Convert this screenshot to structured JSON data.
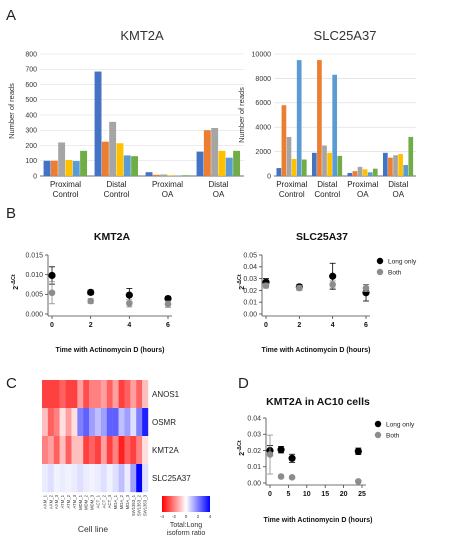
{
  "panels": {
    "A": {
      "label": "A"
    },
    "B": {
      "label": "B"
    },
    "C": {
      "label": "C"
    },
    "D": {
      "label": "D"
    }
  },
  "series_colors": [
    "#4472c4",
    "#ed7d31",
    "#a5a5a5",
    "#ffc000",
    "#5b9bd5",
    "#70ad47"
  ],
  "chart_data": [
    {
      "type": "bar",
      "panel": "A",
      "title": "KMT2A",
      "ylabel": "Number of reads",
      "ylim": [
        0,
        800
      ],
      "yticks": [
        0,
        100,
        200,
        300,
        400,
        500,
        600,
        700,
        800
      ],
      "grid": true,
      "categories": [
        "Proximal Control",
        "Distal Control",
        "Proximal OA",
        "Distal OA"
      ],
      "category_lines": [
        [
          "Proximal",
          "Control"
        ],
        [
          "Distal",
          "Control"
        ],
        [
          "Proximal",
          "OA"
        ],
        [
          "Distal",
          "OA"
        ]
      ],
      "groups": [
        [
          100,
          100,
          220,
          105,
          98,
          165
        ],
        [
          685,
          225,
          355,
          215,
          135,
          130
        ],
        [
          25,
          8,
          10,
          5,
          3,
          5
        ],
        [
          160,
          300,
          315,
          165,
          120,
          165
        ]
      ]
    },
    {
      "type": "bar",
      "panel": "A",
      "title": "SLC25A37",
      "ylabel": "Number of reads",
      "ylim": [
        0,
        10000
      ],
      "yticks": [
        0,
        2000,
        4000,
        6000,
        8000,
        10000
      ],
      "grid": true,
      "categories": [
        "Proximal Control",
        "Distal Control",
        "Proximal OA",
        "Distal OA"
      ],
      "category_lines": [
        [
          "Proximal",
          "Control"
        ],
        [
          "Distal",
          "Control"
        ],
        [
          "Proximal",
          "OA"
        ],
        [
          "Distal",
          "OA"
        ]
      ],
      "groups": [
        [
          650,
          5800,
          3200,
          1400,
          9500,
          1350
        ],
        [
          1900,
          9500,
          2500,
          1900,
          8300,
          1650
        ],
        [
          250,
          400,
          750,
          550,
          300,
          600
        ],
        [
          1900,
          1500,
          1700,
          1800,
          900,
          3200
        ]
      ]
    },
    {
      "type": "scatter",
      "panel": "B",
      "title": "KMT2A",
      "xlabel": "Time with Actinomycin D (hours)",
      "ylabel": "2^-ΔCt",
      "ylabel_base": "2",
      "ylabel_sup": "-ΔCt",
      "xlim": [
        0,
        6
      ],
      "ylim": [
        0,
        0.015
      ],
      "xticks": [
        0,
        2,
        4,
        6
      ],
      "yticks": [
        "0.000",
        "0.005",
        "0.010",
        "0.015"
      ],
      "ytick_values": [
        0,
        0.005,
        0.01,
        0.015
      ],
      "series": [
        {
          "name": "Long only",
          "color": "#000000",
          "x": [
            0,
            2,
            4,
            6
          ],
          "y": [
            0.0098,
            0.0055,
            0.0048,
            0.0039
          ],
          "err": [
            0.0022,
            0.0006,
            0.0017,
            0.0006
          ]
        },
        {
          "name": "Both",
          "color": "#8c8c8c",
          "x": [
            0,
            2,
            4,
            6
          ],
          "y": [
            0.0054,
            0.0033,
            0.0027,
            0.0025
          ],
          "err": [
            0.0028,
            0.0006,
            0.0009,
            0.0008
          ]
        }
      ]
    },
    {
      "type": "scatter",
      "panel": "B",
      "title": "SLC25A37",
      "xlabel": "Time with Actinomycin D (hours)",
      "ylabel": "2^-ΔCt",
      "ylabel_base": "2",
      "ylabel_sup": "-ΔCt",
      "xlim": [
        0,
        6
      ],
      "ylim": [
        0,
        0.05
      ],
      "xticks": [
        0,
        2,
        4,
        6
      ],
      "yticks": [
        "0.00",
        "0.01",
        "0.02",
        "0.03",
        "0.04",
        "0.05"
      ],
      "ytick_values": [
        0,
        0.01,
        0.02,
        0.03,
        0.04,
        0.05
      ],
      "legend": [
        "Long only",
        "Both"
      ],
      "series": [
        {
          "name": "Long only",
          "color": "#000000",
          "x": [
            0,
            2,
            4,
            6
          ],
          "y": [
            0.027,
            0.023,
            0.032,
            0.018
          ],
          "err": [
            0.003,
            0.002,
            0.011,
            0.007
          ]
        },
        {
          "name": "Both",
          "color": "#8c8c8c",
          "x": [
            0,
            2,
            4,
            6
          ],
          "y": [
            0.024,
            0.022,
            0.025,
            0.022
          ],
          "err": [
            0.002,
            0.002,
            0.003,
            0.003
          ]
        }
      ]
    },
    {
      "type": "heatmap",
      "panel": "C",
      "rows": [
        "ANOS1",
        "OSMR",
        "KMT2A",
        "SLC25A37"
      ],
      "columns": [
        "AXM_1",
        "AXM_2",
        "AXM_3",
        "ATM_1",
        "ATM_2",
        "ATM_3",
        "MDM_1",
        "MDM_2",
        "MDM_3",
        "ACT_1",
        "ACT_2",
        "ACT_3",
        "MDA_1",
        "MDA_2",
        "MDA_3",
        "SW1353_1",
        "SW1353_2",
        "SW1353_3"
      ],
      "values": [
        [
          -3,
          -3,
          -3,
          -2.5,
          -3,
          -3,
          -1.5,
          -2.8,
          -2,
          -2,
          -1.5,
          -2.5,
          -1.5,
          -3,
          -2.5,
          -1.5,
          -2.5,
          -1
        ],
        [
          -1,
          -2.5,
          -2,
          -0.5,
          -1.5,
          -0.5,
          2,
          2.5,
          1.5,
          1,
          1.5,
          2.5,
          2.5,
          1,
          1.5,
          0.5,
          2,
          3.5
        ],
        [
          -2,
          -1.5,
          -2.5,
          -1,
          -2.5,
          -1,
          -1,
          -3,
          -2.5,
          -3,
          -1.5,
          -3,
          -2,
          -3.5,
          -2.5,
          -3,
          -2,
          -0.5
        ],
        [
          0.3,
          0.5,
          0.2,
          0.3,
          0.2,
          0.3,
          0.5,
          0.3,
          0.2,
          0.3,
          0.5,
          0.2,
          0.5,
          1,
          0.3,
          1.5,
          4,
          0.5
        ]
      ],
      "xlabel": "Cell line",
      "colorbar": {
        "ticks": [
          "-4",
          "-2",
          "0",
          "2",
          "4"
        ],
        "tick_values": [
          -4,
          -2,
          0,
          2,
          4
        ],
        "label_lines": [
          "Total:Long",
          "isoform ratio"
        ],
        "low_color": "#ff0000",
        "mid_color": "#ffffff",
        "high_color": "#0000ff"
      }
    },
    {
      "type": "scatter",
      "panel": "D",
      "title": "KMT2A in AC10 cells",
      "xlabel": "Time with Actinomycin D (hours)",
      "ylabel": "2^-ΔCt",
      "ylabel_base": "2",
      "ylabel_sup": "-ΔCt",
      "xlim": [
        0,
        25
      ],
      "ylim": [
        0,
        0.04
      ],
      "xticks": [
        0,
        5,
        10,
        15,
        20,
        25
      ],
      "yticks": [
        "0.00",
        "0.01",
        "0.02",
        "0.03",
        "0.04"
      ],
      "ytick_values": [
        0,
        0.01,
        0.02,
        0.03,
        0.04
      ],
      "legend": [
        "Long only",
        "Both"
      ],
      "series": [
        {
          "name": "Long only",
          "color": "#000000",
          "x": [
            0,
            3,
            6,
            24
          ],
          "y": [
            0.02,
            0.0205,
            0.0152,
            0.0195
          ],
          "err": [
            0.003,
            0.002,
            0.0025,
            0.002
          ]
        },
        {
          "name": "Both",
          "color": "#8c8c8c",
          "x": [
            0,
            3,
            6,
            24
          ],
          "y": [
            0.0175,
            0.004,
            0.0035,
            0.001
          ],
          "err": [
            0.012,
            0.0008,
            0.0008,
            0.0004
          ]
        }
      ]
    }
  ]
}
